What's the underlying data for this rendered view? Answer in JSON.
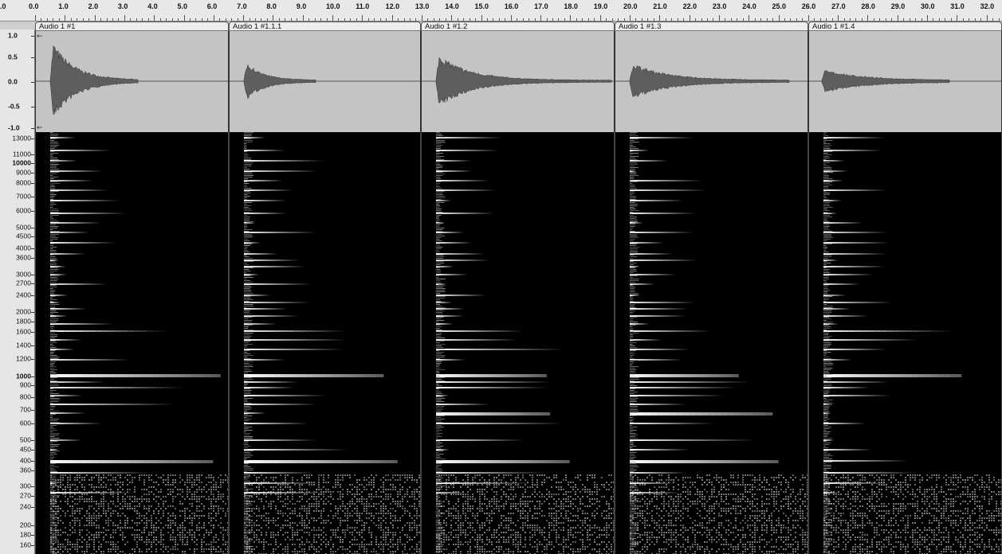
{
  "ruler": {
    "ticks": [
      ".0",
      "0.0",
      "1.0",
      "2.0",
      "3.0",
      "4.0",
      "5.0",
      "6.0",
      "7.0",
      "8.0",
      "9.0",
      "10.0",
      "11.0",
      "12.0",
      "13.0",
      "14.0",
      "15.0",
      "16.0",
      "17.0",
      "18.0",
      "19.0",
      "20.0",
      "21.0",
      "22.0",
      "23.0",
      "24.0",
      "25.0",
      "26.0",
      "27.0",
      "28.0",
      "29.0",
      "30.0",
      "31.0",
      "32.0"
    ]
  },
  "amplitude_scale": {
    "labels": [
      "1.0",
      "0.5",
      "0.0",
      "-0.5",
      "-1.0"
    ]
  },
  "frequency_scale": {
    "labels": [
      "13000",
      "11000",
      "10000",
      "9000",
      "8000",
      "7000",
      "6000",
      "5000",
      "4500",
      "4000",
      "3600",
      "3000",
      "2700",
      "2400",
      "2000",
      "1800",
      "1600",
      "1400",
      "1200",
      "1000",
      "900",
      "800",
      "700",
      "600",
      "500",
      "450",
      "400",
      "360",
      "300",
      "270",
      "240",
      "200",
      "180",
      "160"
    ],
    "bold": [
      "10000",
      "1000"
    ]
  },
  "clips": [
    {
      "name": "Audio 1 #1"
    },
    {
      "name": "Audio 1 #1.1.1"
    },
    {
      "name": "Audio 1 #1.2"
    },
    {
      "name": "Audio 1 #1.3"
    },
    {
      "name": "Audio 1 #1.4"
    }
  ],
  "colors": {
    "wave_background": "#c4c4c4",
    "wave_fill": "#5e5e5e",
    "spectrogram_background": "#000000"
  }
}
